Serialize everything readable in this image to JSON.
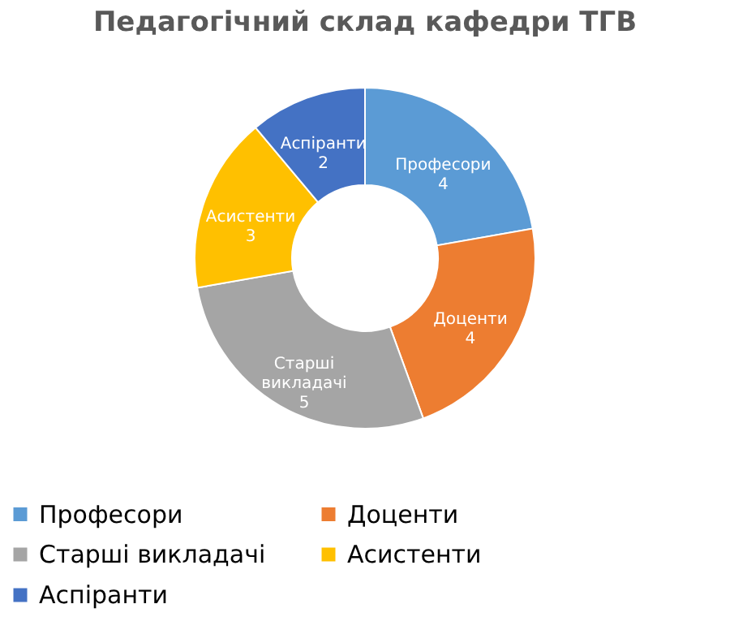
{
  "chart_data": {
    "type": "donut",
    "title": "Педагогічний склад кафедри ТГВ",
    "categories": [
      "Професори",
      "Доценти",
      "Старші викладачі",
      "Асистенти",
      "Аспіранти"
    ],
    "values": [
      4,
      4,
      5,
      3,
      2
    ],
    "colors": [
      "#5b9bd5",
      "#ed7d31",
      "#a5a5a5",
      "#ffc000",
      "#4472c4"
    ],
    "data_labels": true,
    "legend": "bottom"
  }
}
